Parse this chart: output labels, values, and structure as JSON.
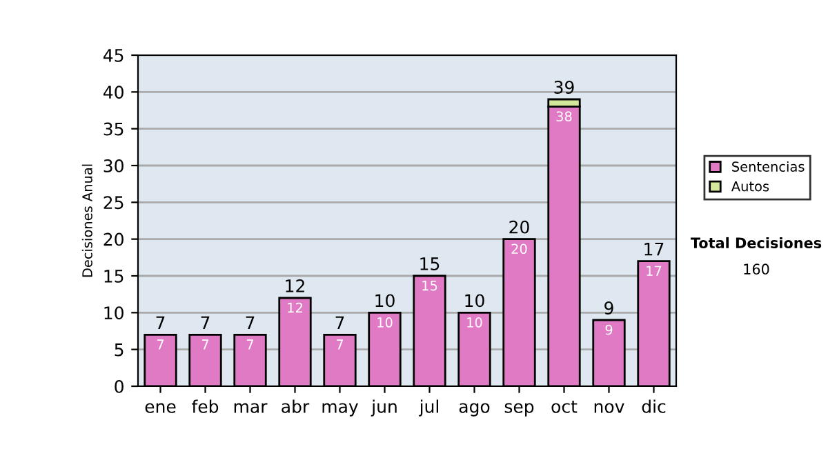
{
  "chart_data": {
    "type": "bar",
    "stacked": true,
    "ylabel": "Decisiones Anual",
    "categories": [
      "ene",
      "feb",
      "mar",
      "abr",
      "may",
      "jun",
      "jul",
      "ago",
      "sep",
      "oct",
      "nov",
      "dic"
    ],
    "series": [
      {
        "name": "Sentencias",
        "color": "#e07ac4",
        "values": [
          7,
          7,
          7,
          12,
          7,
          10,
          15,
          10,
          20,
          38,
          9,
          17
        ],
        "value_labels": [
          "7",
          "7",
          "7",
          "12",
          "7",
          "10",
          "15",
          "10",
          "20",
          "38",
          "9",
          "17"
        ]
      },
      {
        "name": "Autos",
        "color": "#d4e89c",
        "values": [
          null,
          null,
          null,
          null,
          null,
          null,
          null,
          null,
          null,
          1,
          null,
          null
        ]
      }
    ],
    "totals": [
      "7",
      "7",
      "7",
      "12",
      "7",
      "10",
      "15",
      "10",
      "20",
      "39",
      "9",
      "17"
    ],
    "ylim": [
      0,
      45
    ],
    "yticks": [
      0,
      5,
      10,
      15,
      20,
      25,
      30,
      35,
      40,
      45
    ],
    "grid": "y",
    "legend": "right",
    "annotations": [
      "Total Decisiones",
      "160"
    ]
  }
}
